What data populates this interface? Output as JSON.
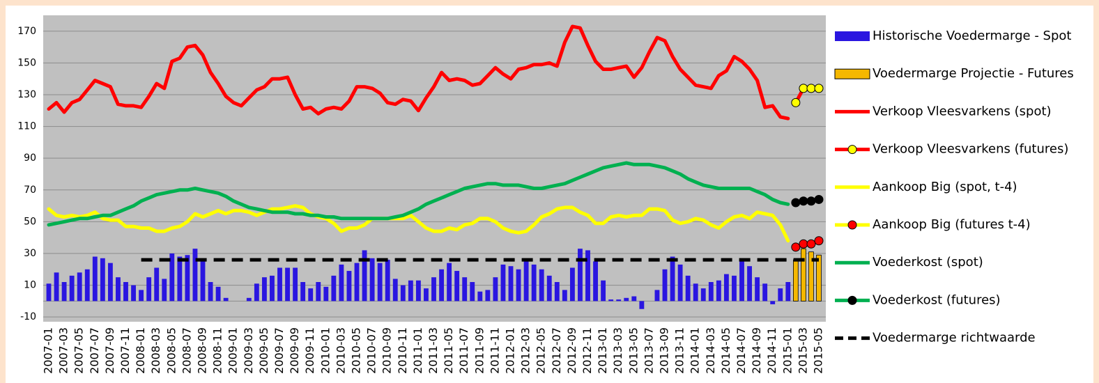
{
  "chart_data": {
    "type": "combo",
    "categories": [
      "2007-01",
      null,
      "2007-03",
      null,
      "2007-05",
      null,
      "2007-07",
      null,
      "2007-09",
      null,
      "2007-11",
      null,
      "2008-01",
      null,
      "2008-03",
      null,
      "2008-05",
      null,
      "2008-07",
      null,
      "2008-09",
      null,
      "2008-11",
      null,
      "2009-01",
      null,
      "2009-03",
      null,
      "2009-05",
      null,
      "2009-07",
      null,
      "2009-09",
      null,
      "2009-11",
      null,
      "2010-01",
      null,
      "2010-03",
      null,
      "2010-05",
      null,
      "2010-07",
      null,
      "2010-09",
      null,
      "2010-11",
      null,
      "2011-01",
      null,
      "2011-03",
      null,
      "2011-05",
      null,
      "2011-07",
      null,
      "2011-09",
      null,
      "2011-11",
      null,
      "2012-01",
      null,
      "2012-03",
      null,
      "2012-05",
      null,
      "2012-07",
      null,
      "2012-09",
      null,
      "2012-11",
      null,
      "2013-01",
      null,
      "2013-03",
      null,
      "2013-05",
      null,
      "2013-07",
      null,
      "2013-09",
      null,
      "2013-11",
      null,
      "2014-01",
      null,
      "2014-03",
      null,
      "2014-05",
      null,
      "2014-07",
      null,
      "2014-09",
      null,
      "2014-11",
      null,
      "2015-01",
      null,
      "2015-03",
      null,
      "2015-05"
    ],
    "ylim": [
      -13,
      180
    ],
    "yticks": [
      -10,
      10,
      30,
      50,
      70,
      90,
      110,
      130,
      150,
      170
    ],
    "grid": true,
    "series": [
      {
        "name": "Historische Voedermarge - Spot",
        "style": "bar",
        "color": "#2a16e0",
        "values": [
          11,
          18,
          12,
          16,
          18,
          20,
          28,
          27,
          24,
          15,
          12,
          10,
          7,
          15,
          21,
          14,
          30,
          28,
          29,
          33,
          25,
          12,
          9,
          2,
          0,
          0,
          2,
          11,
          15,
          16,
          21,
          21,
          21,
          12,
          8,
          12,
          9,
          16,
          23,
          19,
          24,
          32,
          27,
          24,
          26,
          14,
          10,
          13,
          13,
          8,
          15,
          20,
          24,
          19,
          15,
          12,
          6,
          7,
          15,
          23,
          22,
          20,
          26,
          23,
          20,
          16,
          12,
          7,
          21,
          33,
          32,
          25,
          13,
          1,
          1,
          2,
          3,
          -5,
          0,
          7,
          20,
          28,
          23,
          16,
          11,
          8,
          12,
          13,
          17,
          16,
          25,
          22,
          15,
          11,
          -2,
          8,
          12,
          null,
          null,
          null,
          null
        ]
      },
      {
        "name": "Voedermarge Projectie - Futures",
        "style": "bar",
        "color": "#f5b800",
        "values": [
          null,
          null,
          null,
          null,
          null,
          null,
          null,
          null,
          null,
          null,
          null,
          null,
          null,
          null,
          null,
          null,
          null,
          null,
          null,
          null,
          null,
          null,
          null,
          null,
          null,
          null,
          null,
          null,
          null,
          null,
          null,
          null,
          null,
          null,
          null,
          null,
          null,
          null,
          null,
          null,
          null,
          null,
          null,
          null,
          null,
          null,
          null,
          null,
          null,
          null,
          null,
          null,
          null,
          null,
          null,
          null,
          null,
          null,
          null,
          null,
          null,
          null,
          null,
          null,
          null,
          null,
          null,
          null,
          null,
          null,
          null,
          null,
          null,
          null,
          null,
          null,
          null,
          null,
          null,
          null,
          null,
          null,
          null,
          null,
          null,
          null,
          null,
          null,
          null,
          null,
          null,
          null,
          null,
          null,
          null,
          null,
          null,
          26,
          33,
          31,
          29
        ]
      },
      {
        "name": "Verkoop Vleesvarkens (spot)",
        "style": "line",
        "color": "#ff0000",
        "values": [
          121,
          125,
          119,
          125,
          127,
          133,
          139,
          137,
          135,
          124,
          123,
          123,
          122,
          129,
          137,
          134,
          151,
          153,
          160,
          161,
          155,
          144,
          137,
          129,
          125,
          123,
          128,
          133,
          135,
          140,
          140,
          141,
          130,
          121,
          122,
          118,
          121,
          122,
          121,
          126,
          135,
          135,
          134,
          131,
          125,
          124,
          127,
          126,
          120,
          128,
          135,
          144,
          139,
          140,
          139,
          136,
          137,
          142,
          147,
          143,
          140,
          146,
          147,
          149,
          149,
          150,
          148,
          163,
          173,
          172,
          161,
          151,
          146,
          146,
          147,
          148,
          141,
          147,
          157,
          166,
          164,
          154,
          146,
          141,
          136,
          135,
          134,
          142,
          145,
          154,
          151,
          146,
          139,
          122,
          123,
          116,
          115,
          null,
          null,
          null,
          null
        ]
      },
      {
        "name": "Verkoop Vleesvarkens (futures)",
        "style": "line-marker",
        "color": "#ff0000",
        "marker_color": "#ffff00",
        "values": [
          null,
          null,
          null,
          null,
          null,
          null,
          null,
          null,
          null,
          null,
          null,
          null,
          null,
          null,
          null,
          null,
          null,
          null,
          null,
          null,
          null,
          null,
          null,
          null,
          null,
          null,
          null,
          null,
          null,
          null,
          null,
          null,
          null,
          null,
          null,
          null,
          null,
          null,
          null,
          null,
          null,
          null,
          null,
          null,
          null,
          null,
          null,
          null,
          null,
          null,
          null,
          null,
          null,
          null,
          null,
          null,
          null,
          null,
          null,
          null,
          null,
          null,
          null,
          null,
          null,
          null,
          null,
          null,
          null,
          null,
          null,
          null,
          null,
          null,
          null,
          null,
          null,
          null,
          null,
          null,
          null,
          null,
          null,
          null,
          null,
          null,
          null,
          null,
          null,
          null,
          null,
          null,
          null,
          null,
          null,
          null,
          null,
          125,
          134,
          134,
          134
        ]
      },
      {
        "name": "Aankoop Big (spot, t-4)",
        "style": "line",
        "color": "#ffff00",
        "values": [
          58,
          54,
          53,
          54,
          53,
          54,
          56,
          52,
          51,
          51,
          47,
          47,
          46,
          46,
          44,
          44,
          46,
          47,
          50,
          55,
          53,
          55,
          57,
          55,
          57,
          57,
          56,
          54,
          56,
          58,
          58,
          59,
          60,
          59,
          55,
          53,
          52,
          49,
          44,
          46,
          46,
          48,
          52,
          52,
          52,
          52,
          52,
          54,
          50,
          46,
          44,
          44,
          46,
          45,
          48,
          49,
          52,
          52,
          50,
          46,
          44,
          43,
          44,
          48,
          53,
          55,
          58,
          59,
          59,
          56,
          54,
          49,
          49,
          53,
          54,
          53,
          54,
          54,
          58,
          58,
          57,
          51,
          49,
          50,
          52,
          51,
          48,
          46,
          50,
          53,
          54,
          52,
          56,
          55,
          54,
          48,
          38,
          null,
          null,
          null,
          null
        ]
      },
      {
        "name": "Aankoop Big (futures t-4)",
        "style": "line-marker",
        "color": "#ffff00",
        "marker_color": "#ff0000",
        "values": [
          null,
          null,
          null,
          null,
          null,
          null,
          null,
          null,
          null,
          null,
          null,
          null,
          null,
          null,
          null,
          null,
          null,
          null,
          null,
          null,
          null,
          null,
          null,
          null,
          null,
          null,
          null,
          null,
          null,
          null,
          null,
          null,
          null,
          null,
          null,
          null,
          null,
          null,
          null,
          null,
          null,
          null,
          null,
          null,
          null,
          null,
          null,
          null,
          null,
          null,
          null,
          null,
          null,
          null,
          null,
          null,
          null,
          null,
          null,
          null,
          null,
          null,
          null,
          null,
          null,
          null,
          null,
          null,
          null,
          null,
          null,
          null,
          null,
          null,
          null,
          null,
          null,
          null,
          null,
          null,
          null,
          null,
          null,
          null,
          null,
          null,
          null,
          null,
          null,
          null,
          null,
          null,
          null,
          null,
          null,
          null,
          null,
          34,
          36,
          36,
          38
        ]
      },
      {
        "name": "Voederkost (spot)",
        "style": "line",
        "color": "#00b050",
        "values": [
          48,
          49,
          50,
          51,
          52,
          52,
          53,
          54,
          54,
          56,
          58,
          60,
          63,
          65,
          67,
          68,
          69,
          70,
          70,
          71,
          70,
          69,
          68,
          66,
          63,
          61,
          59,
          58,
          57,
          56,
          56,
          56,
          55,
          55,
          54,
          54,
          53,
          53,
          52,
          52,
          52,
          52,
          52,
          52,
          52,
          53,
          54,
          56,
          58,
          61,
          63,
          65,
          67,
          69,
          71,
          72,
          73,
          74,
          74,
          73,
          73,
          73,
          72,
          71,
          71,
          72,
          73,
          74,
          76,
          78,
          80,
          82,
          84,
          85,
          86,
          87,
          86,
          86,
          86,
          85,
          84,
          82,
          80,
          77,
          75,
          73,
          72,
          71,
          71,
          71,
          71,
          71,
          69,
          67,
          64,
          62,
          61,
          null,
          null,
          null,
          null
        ]
      },
      {
        "name": "Voederkost (futures)",
        "style": "line-marker",
        "color": "#00b050",
        "marker_color": "#000000",
        "values": [
          null,
          null,
          null,
          null,
          null,
          null,
          null,
          null,
          null,
          null,
          null,
          null,
          null,
          null,
          null,
          null,
          null,
          null,
          null,
          null,
          null,
          null,
          null,
          null,
          null,
          null,
          null,
          null,
          null,
          null,
          null,
          null,
          null,
          null,
          null,
          null,
          null,
          null,
          null,
          null,
          null,
          null,
          null,
          null,
          null,
          null,
          null,
          null,
          null,
          null,
          null,
          null,
          null,
          null,
          null,
          null,
          null,
          null,
          null,
          null,
          null,
          null,
          null,
          null,
          null,
          null,
          null,
          null,
          null,
          null,
          null,
          null,
          null,
          null,
          null,
          null,
          null,
          null,
          null,
          null,
          null,
          null,
          null,
          null,
          null,
          null,
          null,
          null,
          null,
          null,
          null,
          null,
          null,
          null,
          null,
          null,
          null,
          62,
          63,
          63,
          64
        ]
      },
      {
        "name": "Voedermarge richtwaarde",
        "style": "dashed",
        "color": "#000000",
        "values": [
          null,
          null,
          null,
          null,
          null,
          null,
          null,
          null,
          null,
          null,
          null,
          null,
          26,
          26,
          26,
          26,
          26,
          26,
          26,
          26,
          26,
          26,
          26,
          26,
          26,
          26,
          26,
          26,
          26,
          26,
          26,
          26,
          26,
          26,
          26,
          26,
          26,
          26,
          26,
          26,
          26,
          26,
          26,
          26,
          26,
          26,
          26,
          26,
          26,
          26,
          26,
          26,
          26,
          26,
          26,
          26,
          26,
          26,
          26,
          26,
          26,
          26,
          26,
          26,
          26,
          26,
          26,
          26,
          26,
          26,
          26,
          26,
          26,
          26,
          26,
          26,
          26,
          26,
          26,
          26,
          26,
          26,
          26,
          26,
          26,
          26,
          26,
          26,
          26,
          26,
          26,
          26,
          26,
          26,
          26,
          26,
          26,
          26,
          26,
          26,
          26
        ]
      }
    ]
  }
}
